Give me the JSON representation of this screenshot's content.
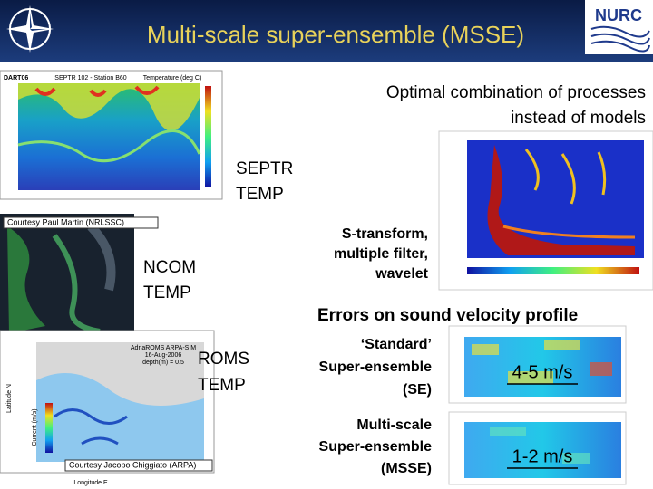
{
  "header": {
    "title": "Multi-scale super-ensemble (MSSE)",
    "logo": "NURC"
  },
  "figures": {
    "septr": {
      "tag": "DART06",
      "title": "SEPTR 102 - Station B60",
      "legend": "Temperature (deg C)"
    },
    "ncom": {
      "credit": "Courtesy Paul Martin (NRLSSC)"
    },
    "roms": {
      "title_lines": [
        "AdriaROMS ARPA-SIM",
        "16-Aug-2006",
        "depth(m) = 0.5"
      ],
      "y_label": "Latitude N",
      "x_label": "Longitude E",
      "colorbar_label": "Current (m/s)",
      "credit": "Courtesy Jacopo Chiggiato (ARPA)"
    }
  },
  "text": {
    "intro": [
      "Optimal combination of processes",
      "instead of models"
    ],
    "septr_label": [
      "SEPTR",
      "TEMP"
    ],
    "ncom_label": [
      "NCOM",
      "TEMP"
    ],
    "roms_label": [
      "ROMS",
      "TEMP"
    ],
    "methods": [
      "S-transform,",
      "multiple filter,",
      "wavelet"
    ],
    "errors_heading": "Errors on sound velocity profile",
    "se": [
      "‘Standard’",
      "Super-ensemble",
      "(SE)"
    ],
    "msse": [
      "Multi-scale",
      "Super-ensemble",
      "(MSSE)"
    ],
    "se_error": "4-5 m/s",
    "msse_error": "1-2 m/s"
  }
}
